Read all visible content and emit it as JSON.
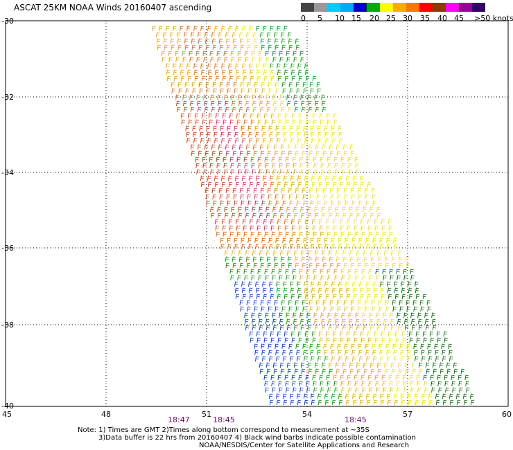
{
  "title": "ASCAT 25KM NOAA Winds 20160407 ascending",
  "colorbar": {
    "labels": [
      "0",
      "5",
      "10",
      "15",
      "20",
      "25",
      "30",
      "35",
      "40",
      "45",
      ">50 knots"
    ],
    "colors": [
      "#444444",
      "#999999",
      "#00ccff",
      "#00aaff",
      "#0000cc",
      "#00aa00",
      "#ffff00",
      "#ffaa00",
      "#ff7700",
      "#ff0000",
      "#993300",
      "#ff00ff",
      "#990099",
      "#330066"
    ]
  },
  "axes": {
    "lat_labels": [
      "-30",
      "-32",
      "-34",
      "-36",
      "-38",
      "-40"
    ],
    "lon_labels": [
      "45",
      "48",
      "51",
      "54",
      "57",
      "60"
    ]
  },
  "times": [
    "18:47",
    "18:45",
    "18:45"
  ],
  "notes": [
    "Note: 1) Times are GMT 2)Times along bottom correspond to measurement at ~35S",
    "3)Data buffer is 22 hrs from 20160407 4) Black wind barbs indicate possible contamination",
    "NOAA/NESDIS/Center for Satellite Applications and Research"
  ]
}
